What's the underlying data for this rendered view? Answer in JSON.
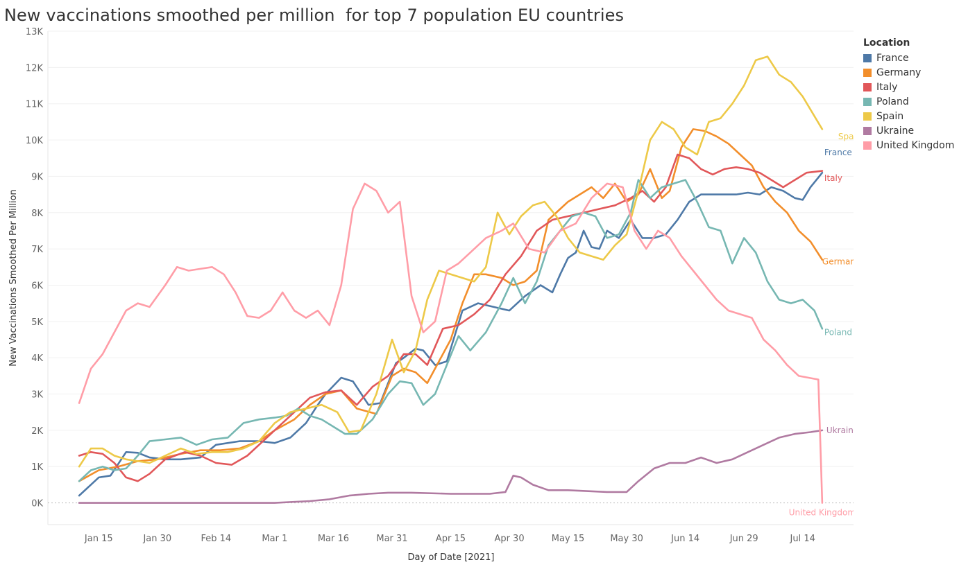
{
  "title": "New vaccinations smoothed per million  for top 7 population EU countries",
  "legend": {
    "title": "Location",
    "items": [
      {
        "label": "France",
        "color": "#4e79a7"
      },
      {
        "label": "Germany",
        "color": "#f28e2b"
      },
      {
        "label": "Italy",
        "color": "#e15759"
      },
      {
        "label": "Poland",
        "color": "#76b7b2"
      },
      {
        "label": "Spain",
        "color": "#edc948"
      },
      {
        "label": "Ukraine",
        "color": "#b07aa1"
      },
      {
        "label": "United Kingdom",
        "color": "#ff9da7"
      }
    ]
  },
  "chart_data": {
    "type": "line",
    "title": "New vaccinations smoothed per million  for top 7 population EU countries",
    "xlabel": "Day of Date [2021]",
    "ylabel": "New Vaccinations Smoothed Per Million",
    "xlim": [
      "2021-01-02",
      "2021-07-27"
    ],
    "ylim": [
      -600,
      13000
    ],
    "x_ticks": [
      {
        "label": "Jan 15",
        "date": "2021-01-15"
      },
      {
        "label": "Jan 30",
        "date": "2021-01-30"
      },
      {
        "label": "Feb 14",
        "date": "2021-02-14"
      },
      {
        "label": "Mar 1",
        "date": "2021-03-01"
      },
      {
        "label": "Mar 16",
        "date": "2021-03-16"
      },
      {
        "label": "Mar 31",
        "date": "2021-03-31"
      },
      {
        "label": "Apr 15",
        "date": "2021-04-15"
      },
      {
        "label": "Apr 30",
        "date": "2021-04-30"
      },
      {
        "label": "May 15",
        "date": "2021-05-15"
      },
      {
        "label": "May 30",
        "date": "2021-05-30"
      },
      {
        "label": "Jun 14",
        "date": "2021-06-14"
      },
      {
        "label": "Jun 29",
        "date": "2021-06-29"
      },
      {
        "label": "Jul 14",
        "date": "2021-07-14"
      }
    ],
    "y_ticks": [
      {
        "label": "0K",
        "value": 0
      },
      {
        "label": "1K",
        "value": 1000
      },
      {
        "label": "2K",
        "value": 2000
      },
      {
        "label": "3K",
        "value": 3000
      },
      {
        "label": "4K",
        "value": 4000
      },
      {
        "label": "5K",
        "value": 5000
      },
      {
        "label": "6K",
        "value": 6000
      },
      {
        "label": "7K",
        "value": 7000
      },
      {
        "label": "8K",
        "value": 8000
      },
      {
        "label": "9K",
        "value": 9000
      },
      {
        "label": "10K",
        "value": 10000
      },
      {
        "label": "11K",
        "value": 11000
      },
      {
        "label": "12K",
        "value": 12000
      },
      {
        "label": "13K",
        "value": 13000
      }
    ],
    "grid": "horizontal",
    "legend_position": "right",
    "series": [
      {
        "name": "France",
        "color": "#4e79a7",
        "end_label": "France",
        "x": [
          "2021-01-10",
          "2021-01-15",
          "2021-01-18",
          "2021-01-22",
          "2021-01-25",
          "2021-01-28",
          "2021-02-01",
          "2021-02-05",
          "2021-02-10",
          "2021-02-14",
          "2021-02-20",
          "2021-02-25",
          "2021-03-01",
          "2021-03-05",
          "2021-03-09",
          "2021-03-12",
          "2021-03-14",
          "2021-03-18",
          "2021-03-21",
          "2021-03-25",
          "2021-03-28",
          "2021-04-01",
          "2021-04-03",
          "2021-04-06",
          "2021-04-08",
          "2021-04-11",
          "2021-04-14",
          "2021-04-18",
          "2021-04-22",
          "2021-04-26",
          "2021-04-30",
          "2021-05-04",
          "2021-05-08",
          "2021-05-11",
          "2021-05-13",
          "2021-05-15",
          "2021-05-17",
          "2021-05-19",
          "2021-05-21",
          "2021-05-23",
          "2021-05-25",
          "2021-05-28",
          "2021-05-31",
          "2021-06-03",
          "2021-06-06",
          "2021-06-09",
          "2021-06-12",
          "2021-06-15",
          "2021-06-18",
          "2021-06-21",
          "2021-06-24",
          "2021-06-27",
          "2021-06-30",
          "2021-07-03",
          "2021-07-06",
          "2021-07-09",
          "2021-07-12",
          "2021-07-14",
          "2021-07-16",
          "2021-07-19"
        ],
        "y": [
          200,
          700,
          750,
          1400,
          1380,
          1250,
          1200,
          1200,
          1250,
          1600,
          1700,
          1700,
          1650,
          1800,
          2200,
          2700,
          3000,
          3450,
          3350,
          2700,
          2750,
          3850,
          4000,
          4250,
          4200,
          3800,
          3900,
          5300,
          5500,
          5400,
          5300,
          5700,
          6000,
          5800,
          6300,
          6750,
          6900,
          7500,
          7050,
          7000,
          7500,
          7300,
          7800,
          7300,
          7300,
          7400,
          7800,
          8300,
          8500,
          8500,
          8500,
          8500,
          8550,
          8500,
          8700,
          8600,
          8400,
          8350,
          8700,
          9100
        ]
      },
      {
        "name": "Germany",
        "color": "#f28e2b",
        "end_label": "Germany",
        "x": [
          "2021-01-10",
          "2021-01-15",
          "2021-01-20",
          "2021-01-25",
          "2021-01-30",
          "2021-02-05",
          "2021-02-10",
          "2021-02-15",
          "2021-02-20",
          "2021-02-25",
          "2021-03-01",
          "2021-03-06",
          "2021-03-10",
          "2021-03-14",
          "2021-03-18",
          "2021-03-22",
          "2021-03-27",
          "2021-03-31",
          "2021-04-03",
          "2021-04-06",
          "2021-04-09",
          "2021-04-12",
          "2021-04-15",
          "2021-04-18",
          "2021-04-21",
          "2021-04-24",
          "2021-04-28",
          "2021-05-01",
          "2021-05-04",
          "2021-05-07",
          "2021-05-10",
          "2021-05-13",
          "2021-05-15",
          "2021-05-18",
          "2021-05-21",
          "2021-05-24",
          "2021-05-27",
          "2021-05-30",
          "2021-06-02",
          "2021-06-05",
          "2021-06-08",
          "2021-06-10",
          "2021-06-13",
          "2021-06-16",
          "2021-06-19",
          "2021-06-22",
          "2021-06-25",
          "2021-06-28",
          "2021-07-01",
          "2021-07-04",
          "2021-07-07",
          "2021-07-10",
          "2021-07-13",
          "2021-07-16",
          "2021-07-19"
        ],
        "y": [
          600,
          900,
          1000,
          1150,
          1200,
          1350,
          1450,
          1450,
          1500,
          1700,
          2000,
          2300,
          2700,
          3000,
          3100,
          2600,
          2450,
          3500,
          3700,
          3600,
          3300,
          3900,
          4500,
          5500,
          6300,
          6300,
          6200,
          6000,
          6100,
          6400,
          7800,
          8100,
          8300,
          8500,
          8700,
          8400,
          8800,
          8300,
          8500,
          9200,
          8400,
          8600,
          9800,
          10300,
          10250,
          10100,
          9900,
          9600,
          9300,
          8700,
          8300,
          8000,
          7500,
          7200,
          6700
        ]
      },
      {
        "name": "Italy",
        "color": "#e15759",
        "end_label": "Italy",
        "x": [
          "2021-01-10",
          "2021-01-13",
          "2021-01-16",
          "2021-01-19",
          "2021-01-22",
          "2021-01-25",
          "2021-01-28",
          "2021-02-01",
          "2021-02-06",
          "2021-02-10",
          "2021-02-14",
          "2021-02-18",
          "2021-02-22",
          "2021-02-26",
          "2021-03-02",
          "2021-03-06",
          "2021-03-10",
          "2021-03-14",
          "2021-03-18",
          "2021-03-22",
          "2021-03-26",
          "2021-03-30",
          "2021-04-03",
          "2021-04-06",
          "2021-04-09",
          "2021-04-13",
          "2021-04-17",
          "2021-04-21",
          "2021-04-25",
          "2021-04-29",
          "2021-05-03",
          "2021-05-07",
          "2021-05-11",
          "2021-05-15",
          "2021-05-19",
          "2021-05-23",
          "2021-05-27",
          "2021-05-31",
          "2021-06-03",
          "2021-06-06",
          "2021-06-09",
          "2021-06-12",
          "2021-06-15",
          "2021-06-18",
          "2021-06-21",
          "2021-06-24",
          "2021-06-27",
          "2021-06-30",
          "2021-07-03",
          "2021-07-06",
          "2021-07-09",
          "2021-07-12",
          "2021-07-15",
          "2021-07-19"
        ],
        "y": [
          1300,
          1400,
          1350,
          1100,
          700,
          600,
          800,
          1200,
          1400,
          1300,
          1100,
          1050,
          1300,
          1700,
          2100,
          2500,
          2900,
          3050,
          3100,
          2700,
          3200,
          3500,
          4100,
          4100,
          3800,
          4800,
          4900,
          5200,
          5600,
          6300,
          6800,
          7500,
          7800,
          7900,
          8000,
          8100,
          8200,
          8400,
          8600,
          8300,
          8700,
          9600,
          9500,
          9200,
          9050,
          9200,
          9250,
          9200,
          9100,
          8900,
          8700,
          8900,
          9100,
          9150
        ]
      },
      {
        "name": "Poland",
        "color": "#76b7b2",
        "end_label": "Poland",
        "x": [
          "2021-01-10",
          "2021-01-13",
          "2021-01-16",
          "2021-01-19",
          "2021-01-22",
          "2021-01-25",
          "2021-01-28",
          "2021-02-01",
          "2021-02-05",
          "2021-02-09",
          "2021-02-13",
          "2021-02-17",
          "2021-02-21",
          "2021-02-25",
          "2021-03-01",
          "2021-03-04",
          "2021-03-07",
          "2021-03-10",
          "2021-03-13",
          "2021-03-16",
          "2021-03-19",
          "2021-03-22",
          "2021-03-26",
          "2021-03-30",
          "2021-04-02",
          "2021-04-05",
          "2021-04-08",
          "2021-04-11",
          "2021-04-14",
          "2021-04-17",
          "2021-04-20",
          "2021-04-24",
          "2021-04-28",
          "2021-05-01",
          "2021-05-04",
          "2021-05-07",
          "2021-05-10",
          "2021-05-13",
          "2021-05-16",
          "2021-05-19",
          "2021-05-22",
          "2021-05-25",
          "2021-05-28",
          "2021-05-31",
          "2021-06-02",
          "2021-06-05",
          "2021-06-08",
          "2021-06-11",
          "2021-06-14",
          "2021-06-17",
          "2021-06-20",
          "2021-06-23",
          "2021-06-26",
          "2021-06-29",
          "2021-07-02",
          "2021-07-05",
          "2021-07-08",
          "2021-07-11",
          "2021-07-14",
          "2021-07-17",
          "2021-07-19"
        ],
        "y": [
          600,
          900,
          1000,
          900,
          950,
          1300,
          1700,
          1750,
          1800,
          1600,
          1750,
          1800,
          2200,
          2300,
          2350,
          2400,
          2600,
          2400,
          2300,
          2100,
          1900,
          1900,
          2300,
          3000,
          3350,
          3300,
          2700,
          3000,
          3800,
          4600,
          4200,
          4700,
          5500,
          6200,
          5500,
          6100,
          7100,
          7500,
          7900,
          8000,
          7900,
          7300,
          7400,
          8000,
          8900,
          8400,
          8700,
          8800,
          8900,
          8300,
          7600,
          7500,
          6600,
          7300,
          6900,
          6100,
          5600,
          5500,
          5600,
          5300,
          4800
        ]
      },
      {
        "name": "Spain",
        "color": "#edc948",
        "end_label": "Spain",
        "x": [
          "2021-01-10",
          "2021-01-13",
          "2021-01-16",
          "2021-01-19",
          "2021-01-22",
          "2021-01-25",
          "2021-01-28",
          "2021-02-01",
          "2021-02-05",
          "2021-02-09",
          "2021-02-13",
          "2021-02-17",
          "2021-02-21",
          "2021-02-25",
          "2021-03-01",
          "2021-03-05",
          "2021-03-09",
          "2021-03-13",
          "2021-03-17",
          "2021-03-20",
          "2021-03-23",
          "2021-03-27",
          "2021-03-31",
          "2021-04-03",
          "2021-04-06",
          "2021-04-09",
          "2021-04-12",
          "2021-04-15",
          "2021-04-18",
          "2021-04-21",
          "2021-04-24",
          "2021-04-27",
          "2021-04-30",
          "2021-05-03",
          "2021-05-06",
          "2021-05-09",
          "2021-05-12",
          "2021-05-15",
          "2021-05-18",
          "2021-05-21",
          "2021-05-24",
          "2021-05-27",
          "2021-05-30",
          "2021-06-02",
          "2021-06-05",
          "2021-06-08",
          "2021-06-11",
          "2021-06-14",
          "2021-06-17",
          "2021-06-20",
          "2021-06-23",
          "2021-06-26",
          "2021-06-29",
          "2021-07-02",
          "2021-07-05",
          "2021-07-08",
          "2021-07-11",
          "2021-07-14",
          "2021-07-19"
        ],
        "y": [
          1000,
          1500,
          1500,
          1300,
          1200,
          1150,
          1100,
          1300,
          1500,
          1350,
          1400,
          1400,
          1500,
          1700,
          2200,
          2500,
          2600,
          2700,
          2500,
          1950,
          2000,
          3000,
          4500,
          3600,
          4200,
          5600,
          6400,
          6300,
          6200,
          6100,
          6500,
          8000,
          7400,
          7900,
          8200,
          8300,
          7900,
          7300,
          6900,
          6800,
          6700,
          7100,
          7400,
          8600,
          10000,
          10500,
          10300,
          9800,
          9600,
          10500,
          10600,
          11000,
          11500,
          12200,
          12300,
          11800,
          11600,
          11200,
          10300
        ]
      },
      {
        "name": "Ukraine",
        "color": "#b07aa1",
        "end_label": "Ukraine",
        "x": [
          "2021-01-10",
          "2021-03-01",
          "2021-03-10",
          "2021-03-15",
          "2021-03-20",
          "2021-03-25",
          "2021-03-30",
          "2021-04-05",
          "2021-04-15",
          "2021-04-25",
          "2021-04-29",
          "2021-05-01",
          "2021-05-03",
          "2021-05-06",
          "2021-05-10",
          "2021-05-15",
          "2021-05-25",
          "2021-05-30",
          "2021-06-02",
          "2021-06-06",
          "2021-06-10",
          "2021-06-14",
          "2021-06-18",
          "2021-06-22",
          "2021-06-26",
          "2021-06-30",
          "2021-07-04",
          "2021-07-08",
          "2021-07-12",
          "2021-07-16",
          "2021-07-19"
        ],
        "y": [
          0,
          0,
          50,
          100,
          200,
          250,
          280,
          280,
          250,
          250,
          300,
          750,
          700,
          500,
          350,
          350,
          300,
          300,
          600,
          950,
          1100,
          1100,
          1250,
          1100,
          1200,
          1400,
          1600,
          1800,
          1900,
          1950,
          2000
        ]
      },
      {
        "name": "United Kingdom",
        "color": "#ff9da7",
        "end_label": "United Kingdom",
        "x": [
          "2021-01-10",
          "2021-01-13",
          "2021-01-16",
          "2021-01-19",
          "2021-01-22",
          "2021-01-25",
          "2021-01-28",
          "2021-02-01",
          "2021-02-04",
          "2021-02-07",
          "2021-02-10",
          "2021-02-13",
          "2021-02-16",
          "2021-02-19",
          "2021-02-22",
          "2021-02-25",
          "2021-02-28",
          "2021-03-03",
          "2021-03-06",
          "2021-03-09",
          "2021-03-12",
          "2021-03-15",
          "2021-03-18",
          "2021-03-21",
          "2021-03-24",
          "2021-03-27",
          "2021-03-30",
          "2021-04-02",
          "2021-04-05",
          "2021-04-08",
          "2021-04-11",
          "2021-04-14",
          "2021-04-17",
          "2021-04-20",
          "2021-04-24",
          "2021-04-28",
          "2021-05-01",
          "2021-05-05",
          "2021-05-09",
          "2021-05-13",
          "2021-05-17",
          "2021-05-21",
          "2021-05-25",
          "2021-05-29",
          "2021-06-01",
          "2021-06-04",
          "2021-06-07",
          "2021-06-10",
          "2021-06-13",
          "2021-06-16",
          "2021-06-19",
          "2021-06-22",
          "2021-06-25",
          "2021-06-28",
          "2021-07-01",
          "2021-07-04",
          "2021-07-07",
          "2021-07-10",
          "2021-07-13",
          "2021-07-18",
          "2021-07-19"
        ],
        "y": [
          2750,
          3700,
          4100,
          4700,
          5300,
          5500,
          5400,
          6000,
          6500,
          6400,
          6450,
          6500,
          6300,
          5800,
          5150,
          5100,
          5300,
          5800,
          5300,
          5100,
          5300,
          4900,
          6000,
          8100,
          8800,
          8600,
          8000,
          8300,
          5700,
          4700,
          5000,
          6400,
          6600,
          6900,
          7300,
          7500,
          7700,
          7000,
          6900,
          7500,
          7700,
          8400,
          8800,
          8700,
          7500,
          7000,
          7500,
          7300,
          6800,
          6400,
          6000,
          5600,
          5300,
          5200,
          5100,
          4500,
          4200,
          3800,
          3500,
          3400,
          0
        ]
      }
    ]
  }
}
